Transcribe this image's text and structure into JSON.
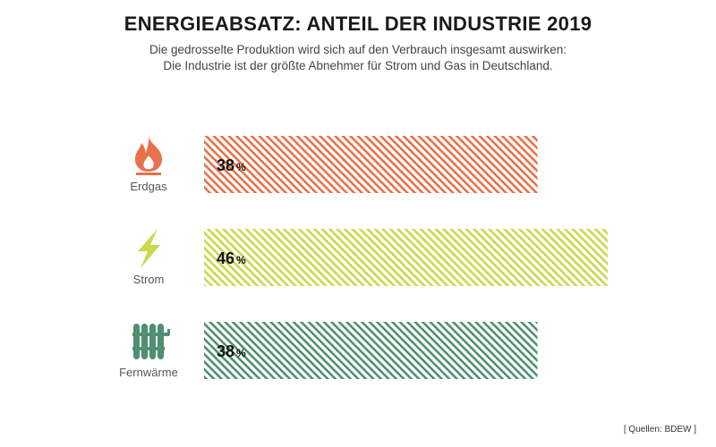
{
  "header": {
    "title": "ENERGIEABSATZ: ANTEIL DER INDUSTRIE 2019",
    "subtitle_line1": "Die gedrosselte Produktion wird sich auf den Verbrauch insgesamt auswirken:",
    "subtitle_line2": "Die Industrie ist der größte Abnehmer für Strom und Gas in Deutschland."
  },
  "source": "[ Quellen: BDEW ]",
  "chart_data": {
    "type": "bar",
    "orientation": "horizontal",
    "categories": [
      "Erdgas",
      "Strom",
      "Fernwärme"
    ],
    "values": [
      38,
      46,
      38
    ],
    "unit": "%",
    "bar_style": "diagonal-hatch",
    "grid": false,
    "legend": "none",
    "xlim": [
      0,
      46
    ],
    "colors": [
      "#e8704a",
      "#c9d94a",
      "#4f8f72"
    ],
    "icons": [
      "flame-icon",
      "lightning-icon",
      "radiator-icon"
    ]
  }
}
